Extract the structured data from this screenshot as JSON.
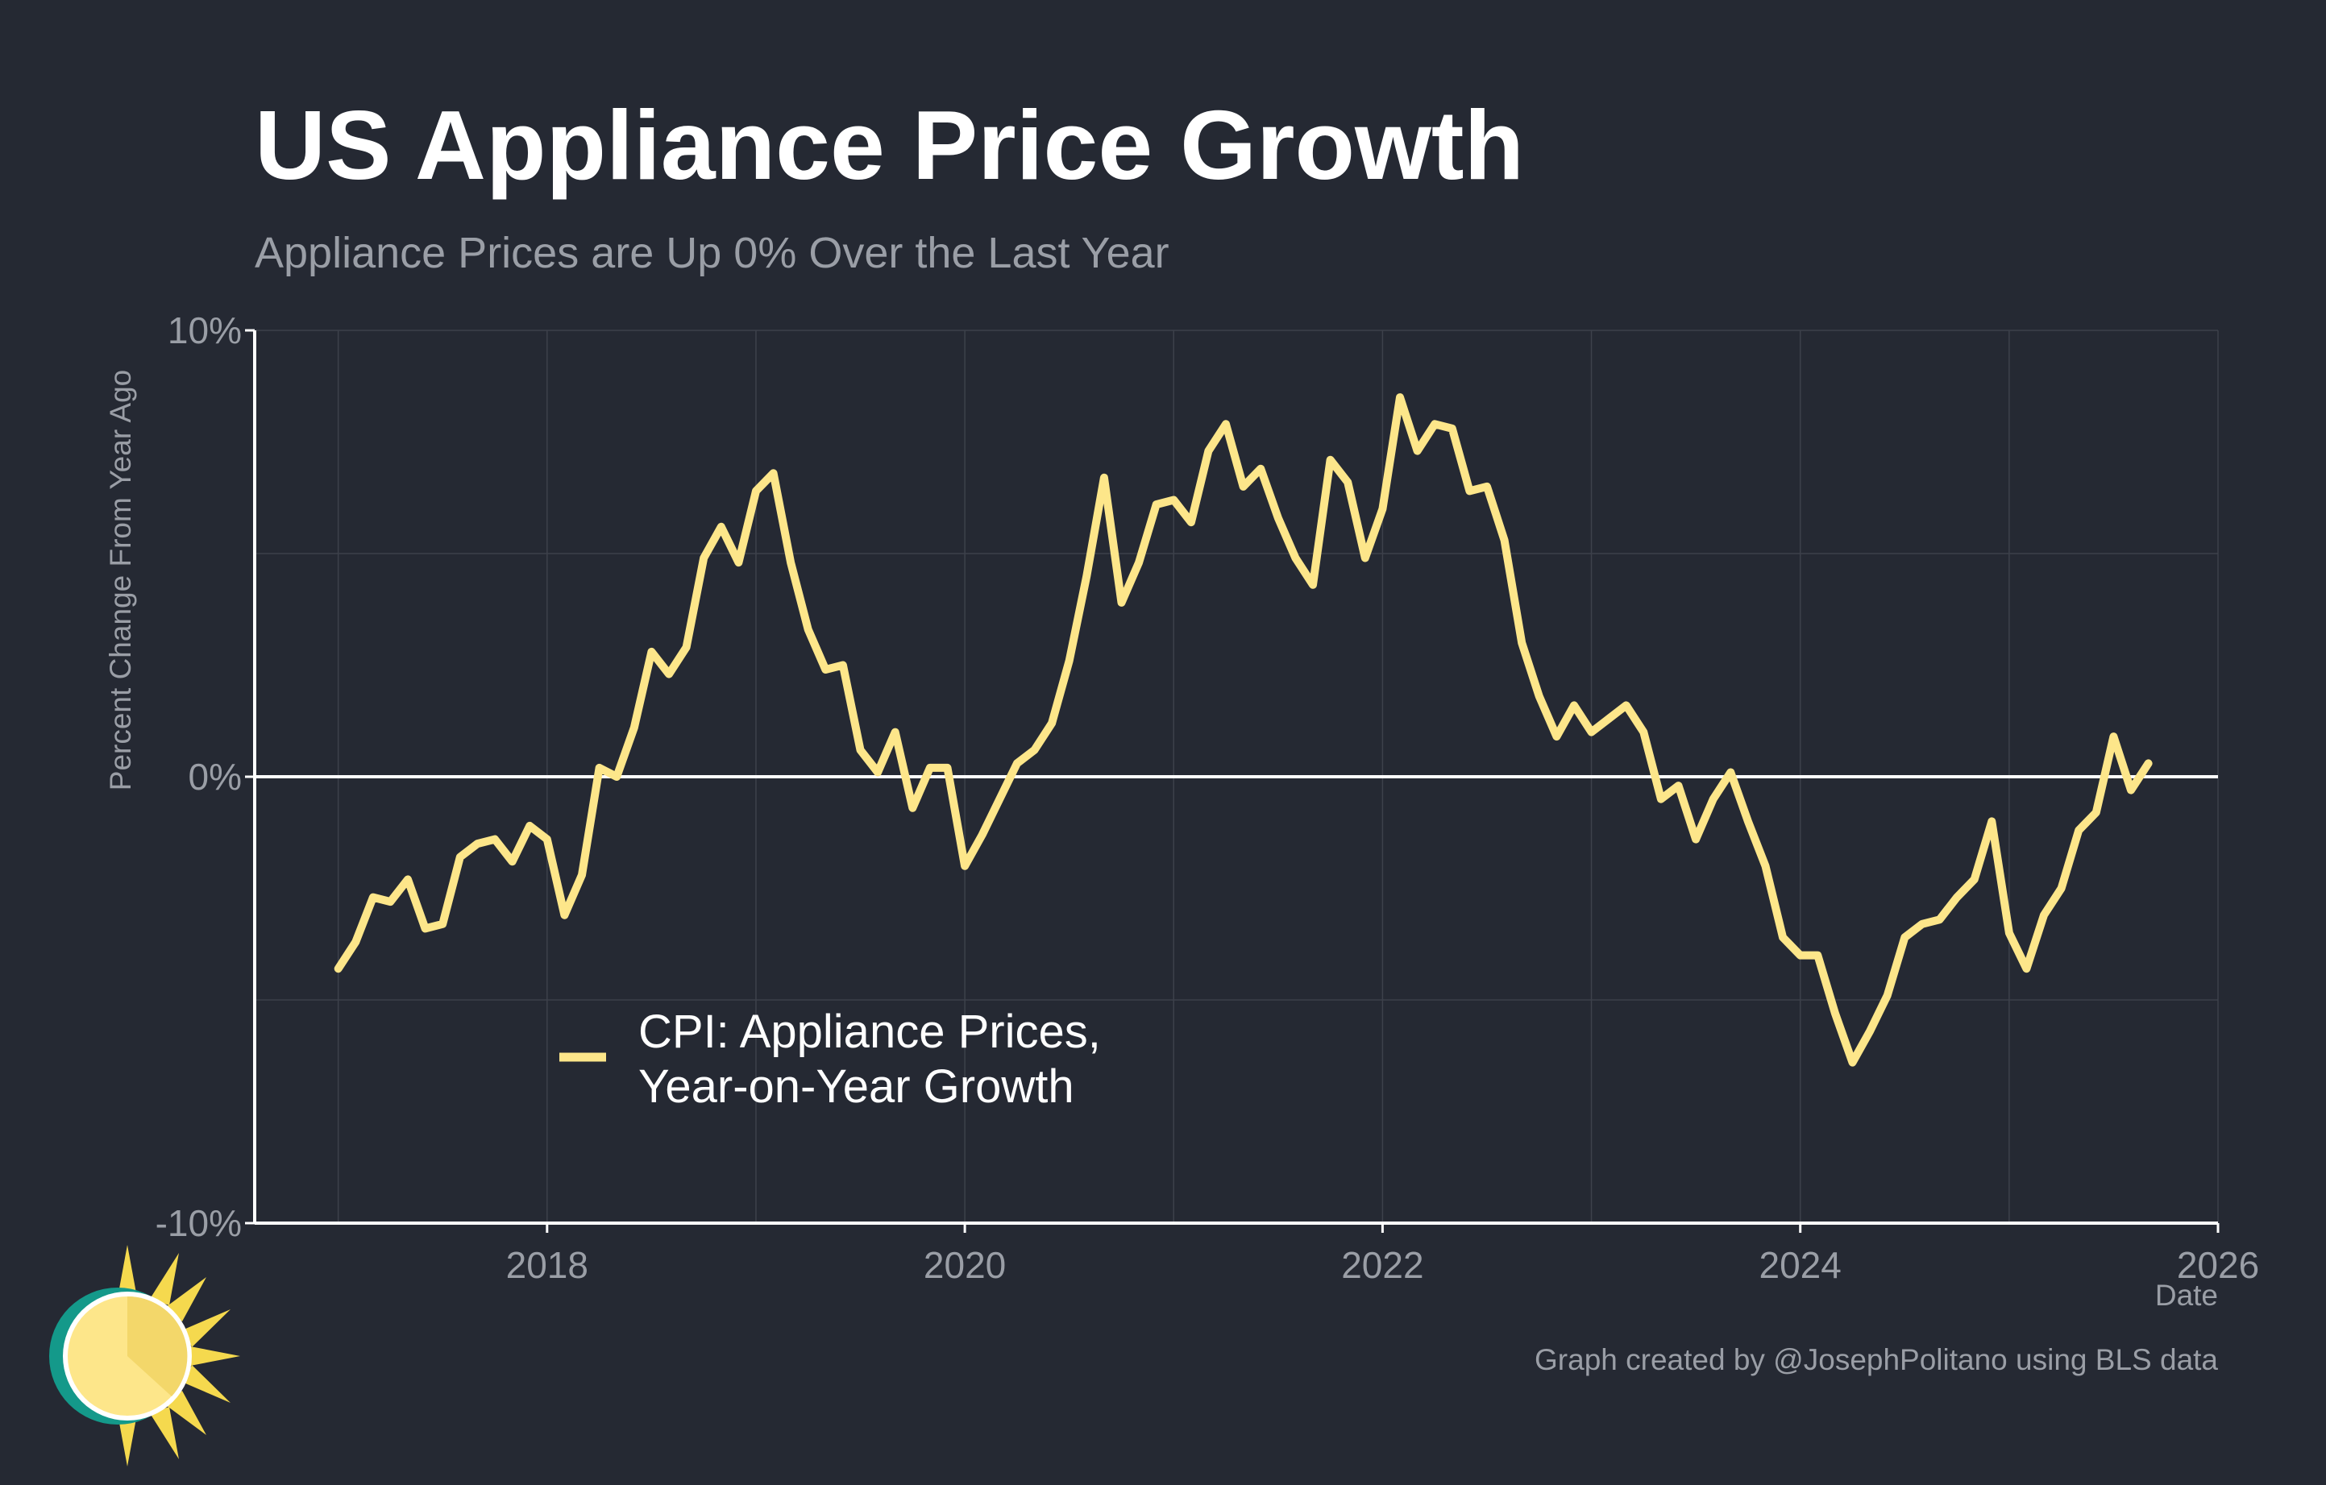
{
  "header": {
    "title": "US Appliance Price Growth",
    "subtitle": "Appliance Prices are Up 0% Over the Last Year"
  },
  "footer": {
    "credit": "Graph created by @JosephPolitano using BLS data"
  },
  "colors": {
    "background": "#252933",
    "line": "#fde68a",
    "zero_line": "#ffffff",
    "grid": "#3d414b",
    "text_muted": "#9a9ea6"
  },
  "chart_data": {
    "type": "line",
    "title": "US Appliance Price Growth",
    "subtitle": "Appliance Prices are Up 0% Over the Last Year",
    "xlabel": "Date",
    "ylabel": "Percent Change From Year Ago",
    "xlim": [
      2016.6,
      2026.0
    ],
    "ylim": [
      -10,
      10
    ],
    "x_ticks": [
      2018,
      2020,
      2022,
      2024,
      2026
    ],
    "y_ticks": [
      10,
      0,
      -10
    ],
    "y_tick_labels": [
      "10%",
      "0%",
      "-10%"
    ],
    "grid": true,
    "zero_line": true,
    "legend": {
      "position": "bottom-left",
      "entries": [
        "CPI: Appliance Prices,",
        "Year-on-Year Growth"
      ]
    },
    "series": [
      {
        "name": "CPI: Appliance Prices, Year-on-Year Growth",
        "color": "#fde68a",
        "start": "2017-01",
        "frequency": "monthly",
        "values": [
          -4.3,
          -3.7,
          -2.7,
          -2.8,
          -2.3,
          -3.4,
          -3.3,
          -1.8,
          -1.5,
          -1.4,
          -1.9,
          -1.1,
          -1.4,
          -3.1,
          -2.2,
          0.2,
          0.0,
          1.1,
          2.8,
          2.3,
          2.9,
          4.9,
          5.6,
          4.8,
          6.4,
          6.8,
          4.8,
          3.3,
          2.4,
          2.5,
          0.6,
          0.1,
          1.0,
          -0.7,
          0.2,
          0.2,
          -2.0,
          -1.3,
          -0.5,
          0.3,
          0.6,
          1.2,
          2.6,
          4.5,
          6.7,
          3.9,
          4.8,
          6.1,
          6.2,
          5.7,
          7.3,
          7.9,
          6.5,
          6.9,
          5.8,
          4.9,
          4.3,
          7.1,
          6.6,
          4.9,
          6.0,
          8.5,
          7.3,
          7.9,
          7.8,
          6.4,
          6.5,
          5.3,
          3.0,
          1.8,
          0.9,
          1.6,
          1.0,
          1.3,
          1.6,
          1.0,
          -0.5,
          -0.2,
          -1.4,
          -0.5,
          0.1,
          -1.0,
          -2.0,
          -3.6,
          -4.0,
          -4.0,
          -5.3,
          -6.4,
          -5.7,
          -4.9,
          -3.6,
          -3.3,
          -3.2,
          -2.7,
          -2.3,
          -1.0,
          -3.5,
          -4.3,
          -3.1,
          -2.5,
          -1.2,
          -0.8,
          0.9,
          -0.3,
          0.3
        ]
      }
    ]
  }
}
